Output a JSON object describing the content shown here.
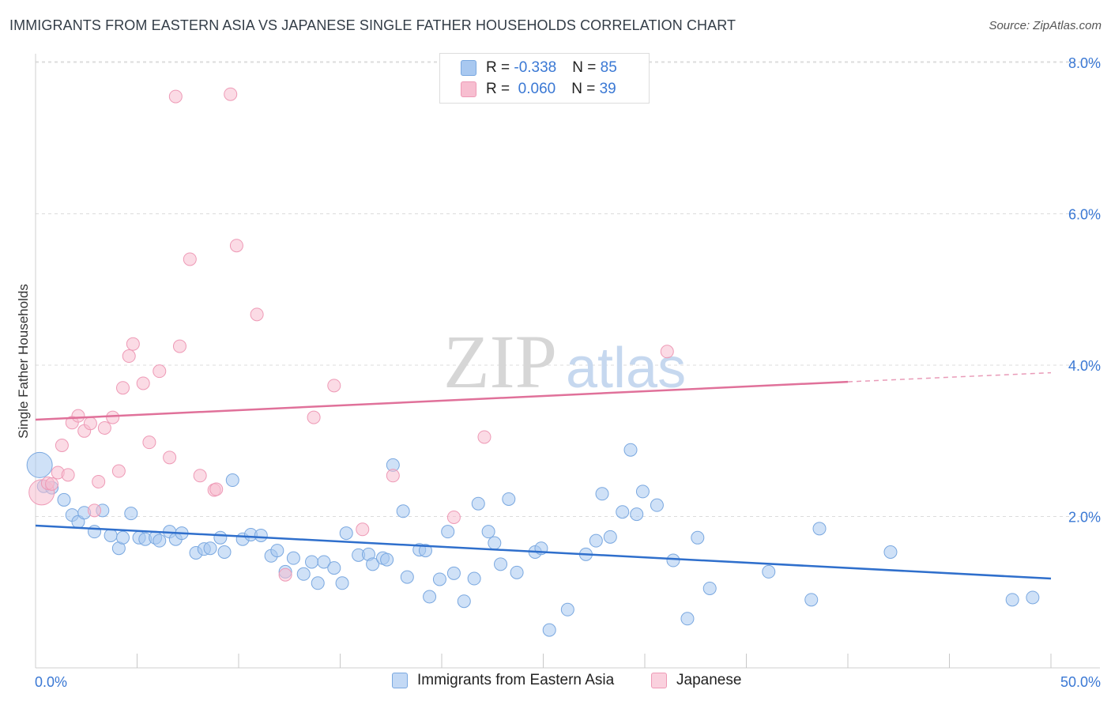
{
  "header": {
    "title": "IMMIGRANTS FROM EASTERN ASIA VS JAPANESE SINGLE FATHER HOUSEHOLDS CORRELATION CHART",
    "source": "Source: ZipAtlas.com"
  },
  "watermark": {
    "zip": "ZIP",
    "atlas": "atlas"
  },
  "legend_top": {
    "rows": [
      {
        "r_label": "R = ",
        "r_value": "-0.338",
        "n_label": "N = ",
        "n_value": "85"
      },
      {
        "r_label": "R = ",
        "r_value": " 0.060",
        "n_label": "N = ",
        "n_value": "39"
      }
    ]
  },
  "legend_bottom": {
    "items": [
      {
        "label": "Immigrants from Eastern Asia"
      },
      {
        "label": "Japanese"
      }
    ]
  },
  "colors": {
    "blue_fill": "#a8c8f0",
    "blue_stroke": "#7aa8e0",
    "blue_line": "#2f6fcc",
    "pink_fill": "#f7bed0",
    "pink_stroke": "#ee9ab6",
    "pink_line": "#e0719a",
    "tick_label": "#3a78d4",
    "grid": "#dcdcdc"
  },
  "chart_data": {
    "type": "scatter",
    "title": "IMMIGRANTS FROM EASTERN ASIA VS JAPANESE SINGLE FATHER HOUSEHOLDS CORRELATION CHART",
    "xlabel": "",
    "ylabel": "Single Father Households",
    "xlim": [
      0,
      50
    ],
    "ylim": [
      0,
      8.4
    ],
    "x_tick_labels": [
      "0.0%",
      "50.0%"
    ],
    "y_ticks": [
      {
        "value": 2,
        "label": "2.0%"
      },
      {
        "value": 4,
        "label": "4.0%"
      },
      {
        "value": 6,
        "label": "6.0%"
      },
      {
        "value": 8,
        "label": "8.0%"
      }
    ],
    "grid": true,
    "legend_position": "top-center",
    "series": [
      {
        "name": "Immigrants from Eastern Asia",
        "r": -0.338,
        "n": 85,
        "trend": {
          "x0": 0,
          "y0": 1.88,
          "x1": 50,
          "y1": 1.18
        },
        "points": [
          [
            0.2,
            2.68
          ],
          [
            0.4,
            2.4
          ],
          [
            0.8,
            2.38
          ],
          [
            1.4,
            2.22
          ],
          [
            1.8,
            2.02
          ],
          [
            2.1,
            1.93
          ],
          [
            2.4,
            2.05
          ],
          [
            2.9,
            1.8
          ],
          [
            3.3,
            2.08
          ],
          [
            3.7,
            1.75
          ],
          [
            4.1,
            1.58
          ],
          [
            4.3,
            1.72
          ],
          [
            4.7,
            2.04
          ],
          [
            5.1,
            1.72
          ],
          [
            5.4,
            1.7
          ],
          [
            5.9,
            1.72
          ],
          [
            6.1,
            1.68
          ],
          [
            6.6,
            1.8
          ],
          [
            6.9,
            1.7
          ],
          [
            7.2,
            1.78
          ],
          [
            7.9,
            1.52
          ],
          [
            8.3,
            1.57
          ],
          [
            8.6,
            1.58
          ],
          [
            9.1,
            1.72
          ],
          [
            9.3,
            1.53
          ],
          [
            9.7,
            2.48
          ],
          [
            10.2,
            1.7
          ],
          [
            10.6,
            1.76
          ],
          [
            11.1,
            1.75
          ],
          [
            11.6,
            1.48
          ],
          [
            11.9,
            1.55
          ],
          [
            12.3,
            1.27
          ],
          [
            12.7,
            1.45
          ],
          [
            13.2,
            1.24
          ],
          [
            13.6,
            1.4
          ],
          [
            13.9,
            1.12
          ],
          [
            14.2,
            1.4
          ],
          [
            14.7,
            1.32
          ],
          [
            15.1,
            1.12
          ],
          [
            15.3,
            1.78
          ],
          [
            15.9,
            1.49
          ],
          [
            16.4,
            1.5
          ],
          [
            16.6,
            1.37
          ],
          [
            17.1,
            1.45
          ],
          [
            17.3,
            1.43
          ],
          [
            17.6,
            2.68
          ],
          [
            18.1,
            2.07
          ],
          [
            18.3,
            1.2
          ],
          [
            18.9,
            1.56
          ],
          [
            19.2,
            1.55
          ],
          [
            19.4,
            0.94
          ],
          [
            19.9,
            1.17
          ],
          [
            20.3,
            1.8
          ],
          [
            20.6,
            1.25
          ],
          [
            21.1,
            0.88
          ],
          [
            21.6,
            1.18
          ],
          [
            21.8,
            2.17
          ],
          [
            22.3,
            1.8
          ],
          [
            22.6,
            1.65
          ],
          [
            22.9,
            1.37
          ],
          [
            23.3,
            2.23
          ],
          [
            23.7,
            1.26
          ],
          [
            24.6,
            1.53
          ],
          [
            24.9,
            1.58
          ],
          [
            25.3,
            0.5
          ],
          [
            26.2,
            0.77
          ],
          [
            27.1,
            1.5
          ],
          [
            27.6,
            1.68
          ],
          [
            27.9,
            2.3
          ],
          [
            28.3,
            1.73
          ],
          [
            28.9,
            2.06
          ],
          [
            29.3,
            2.88
          ],
          [
            29.6,
            2.03
          ],
          [
            29.9,
            2.33
          ],
          [
            30.6,
            2.15
          ],
          [
            31.4,
            1.42
          ],
          [
            32.1,
            0.65
          ],
          [
            32.6,
            1.72
          ],
          [
            33.2,
            1.05
          ],
          [
            36.1,
            1.27
          ],
          [
            38.2,
            0.9
          ],
          [
            38.6,
            1.84
          ],
          [
            42.1,
            1.53
          ],
          [
            48.1,
            0.9
          ],
          [
            49.1,
            0.93
          ]
        ]
      },
      {
        "name": "Japanese",
        "r": 0.06,
        "n": 39,
        "trend": {
          "x0": 0,
          "y0": 3.28,
          "x1": 40,
          "y1": 3.78,
          "dash_x1": 50,
          "dash_y1": 3.9
        },
        "points": [
          [
            0.3,
            2.32
          ],
          [
            0.6,
            2.44
          ],
          [
            0.8,
            2.43
          ],
          [
            1.1,
            2.58
          ],
          [
            1.3,
            2.94
          ],
          [
            1.6,
            2.55
          ],
          [
            1.8,
            3.24
          ],
          [
            2.1,
            3.33
          ],
          [
            2.4,
            3.13
          ],
          [
            2.7,
            3.23
          ],
          [
            2.9,
            2.08
          ],
          [
            3.1,
            2.46
          ],
          [
            3.4,
            3.17
          ],
          [
            3.8,
            3.31
          ],
          [
            4.1,
            2.6
          ],
          [
            4.3,
            3.7
          ],
          [
            4.6,
            4.12
          ],
          [
            4.8,
            4.28
          ],
          [
            5.3,
            3.76
          ],
          [
            5.6,
            2.98
          ],
          [
            6.1,
            3.92
          ],
          [
            6.6,
            2.78
          ],
          [
            6.9,
            7.55
          ],
          [
            7.1,
            4.25
          ],
          [
            7.6,
            5.4
          ],
          [
            8.1,
            2.54
          ],
          [
            8.8,
            2.35
          ],
          [
            8.9,
            2.36
          ],
          [
            9.6,
            7.58
          ],
          [
            9.9,
            5.58
          ],
          [
            10.9,
            4.67
          ],
          [
            12.3,
            1.23
          ],
          [
            13.7,
            3.31
          ],
          [
            14.7,
            3.73
          ],
          [
            16.1,
            1.83
          ],
          [
            17.6,
            2.54
          ],
          [
            20.6,
            1.99
          ],
          [
            22.1,
            3.05
          ],
          [
            31.1,
            4.18
          ]
        ]
      }
    ]
  }
}
